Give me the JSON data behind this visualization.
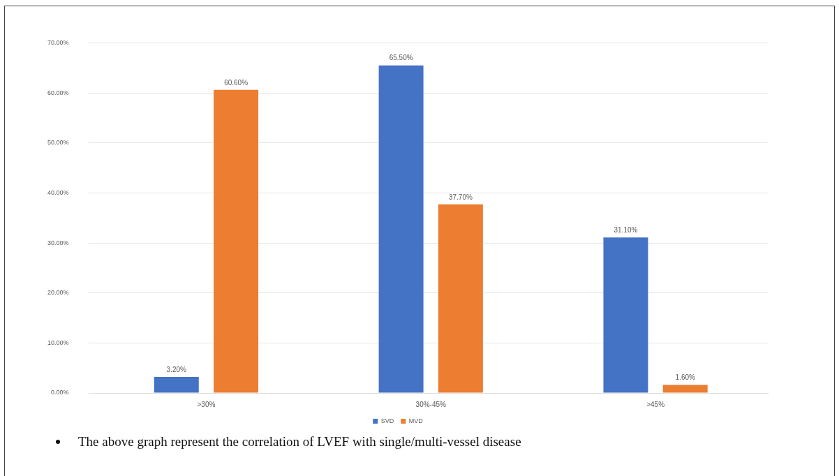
{
  "chart_data": {
    "type": "bar",
    "categories": [
      ">30%",
      "30%-45%",
      ">45%"
    ],
    "series": [
      {
        "name": "SVD",
        "color": "#4472c4",
        "values": [
          3.2,
          65.5,
          31.1
        ],
        "value_labels": [
          "3.20%",
          "65.50%",
          "31.10%"
        ]
      },
      {
        "name": "MVD",
        "color": "#ed7d31",
        "values": [
          60.6,
          37.7,
          1.6
        ],
        "value_labels": [
          "60.60%",
          "37.70%",
          "1.60%"
        ]
      }
    ],
    "ylim": [
      0,
      70
    ],
    "yticks": [
      {
        "value": 0,
        "label": "0.00%"
      },
      {
        "value": 10,
        "label": "10.00%"
      },
      {
        "value": 20,
        "label": "20.00%"
      },
      {
        "value": 30,
        "label": "30.00%"
      },
      {
        "value": 40,
        "label": "40.00%"
      },
      {
        "value": 50,
        "label": "50.00%"
      },
      {
        "value": 60,
        "label": "60.00%"
      },
      {
        "value": 70,
        "label": "70.00%"
      }
    ],
    "grid": "y",
    "legend": "bottom",
    "annotations": [
      "The above graph represent the correlation of LVEF with single/multi-vessel disease"
    ]
  }
}
